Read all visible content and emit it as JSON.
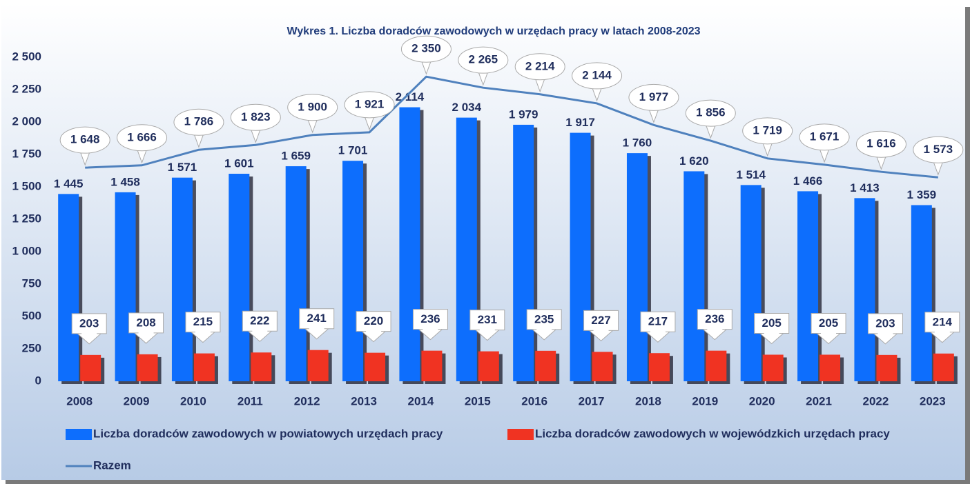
{
  "chart_data": {
    "type": "bar",
    "title": "Wykres 1. Liczba doradców zawodowych w urzędach pracy w latach 2008-2023",
    "categories": [
      "2008",
      "2009",
      "2010",
      "2011",
      "2012",
      "2013",
      "2014",
      "2015",
      "2016",
      "2017",
      "2018",
      "2019",
      "2020",
      "2021",
      "2022",
      "2023"
    ],
    "series": [
      {
        "name": "Liczba doradców zawodowych w powiatowych urzędach pracy",
        "color": "#0d6efd",
        "values": [
          1445,
          1458,
          1571,
          1601,
          1659,
          1701,
          2114,
          2034,
          1979,
          1917,
          1760,
          1620,
          1514,
          1466,
          1413,
          1359
        ],
        "value_labels": [
          "1 445",
          "1 458",
          "1 571",
          "1 601",
          "1 659",
          "1 701",
          "2 114",
          "2 034",
          "1 979",
          "1 917",
          "1 760",
          "1 620",
          "1 514",
          "1 466",
          "1 413",
          "1 359"
        ]
      },
      {
        "name": "Liczba doradców zawodowych w wojewódzkich urzędach pracy",
        "color": "#f03322",
        "values": [
          203,
          208,
          215,
          222,
          241,
          220,
          236,
          231,
          235,
          227,
          217,
          236,
          205,
          205,
          203,
          214
        ]
      },
      {
        "name": "Razem",
        "color": "#4f81bd",
        "type": "line",
        "values": [
          1648,
          1666,
          1786,
          1823,
          1900,
          1921,
          2350,
          2265,
          2214,
          2144,
          1977,
          1856,
          1719,
          1671,
          1616,
          1573
        ],
        "value_labels": [
          "1 648",
          "1 666",
          "1 786",
          "1 823",
          "1 900",
          "1 921",
          "2 350",
          "2 265",
          "2 214",
          "2 144",
          "1 977",
          "1 856",
          "1 719",
          "1 671",
          "1 616",
          "1 573"
        ]
      }
    ],
    "ylim": [
      0,
      2500
    ],
    "yticks": [
      0,
      250,
      500,
      750,
      {
        "value": 1000,
        "label": "1 000"
      },
      {
        "value": 1250,
        "label": "1 250"
      },
      {
        "value": 1500,
        "label": "1 500"
      },
      {
        "value": 1750,
        "label": "1 750"
      },
      {
        "value": 2000,
        "label": "2 000"
      },
      {
        "value": 2250,
        "label": "2 250"
      },
      {
        "value": 2500,
        "label": "2 500"
      }
    ],
    "grid": false,
    "legend": "bottom"
  }
}
